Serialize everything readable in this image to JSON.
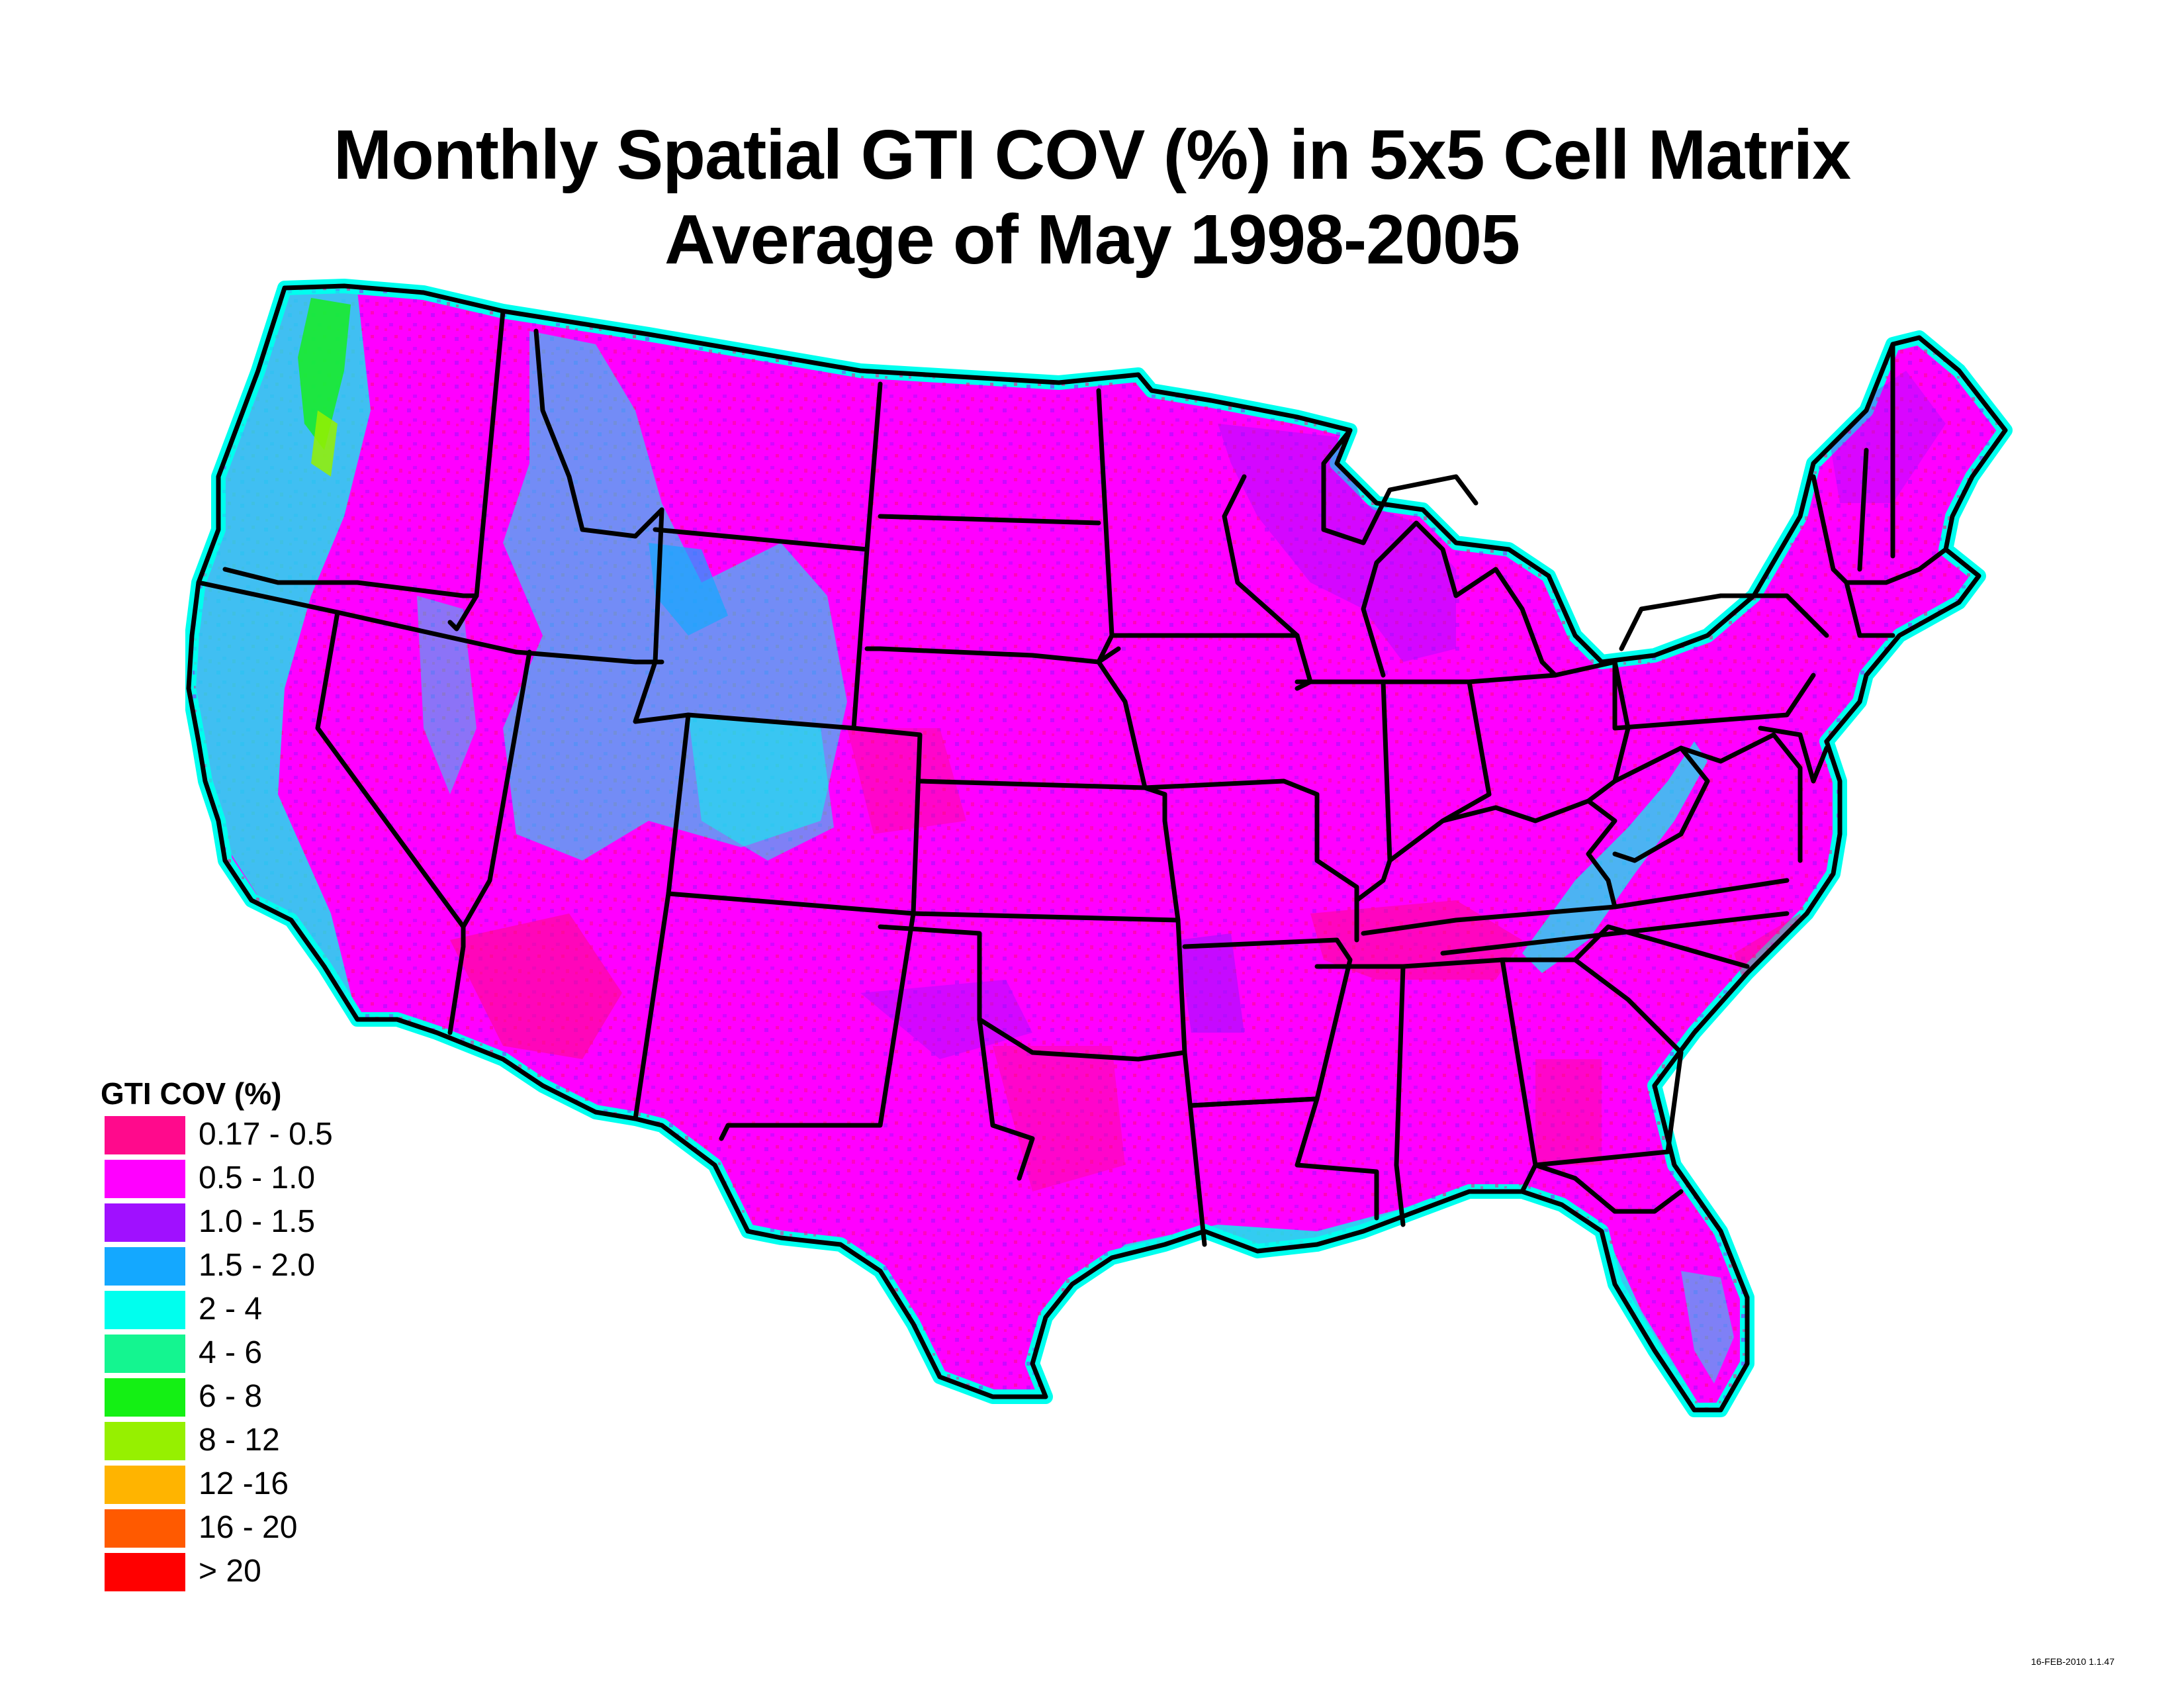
{
  "title": {
    "line1": "Monthly Spatial GTI COV (%) in 5x5 Cell Matrix",
    "line2": "Average of May 1998-2005"
  },
  "legend": {
    "title": "GTI COV (%)",
    "items": [
      {
        "label": "0.17 - 0.5",
        "color": "#ff0a8c"
      },
      {
        "label": "0.5 - 1.0",
        "color": "#ff00ff"
      },
      {
        "label": "1.0 - 1.5",
        "color": "#a010ff"
      },
      {
        "label": "1.5 - 2.0",
        "color": "#14a8ff"
      },
      {
        "label": "2 - 4",
        "color": "#00ffee"
      },
      {
        "label": "4 - 6",
        "color": "#14f590"
      },
      {
        "label": "6 - 8",
        "color": "#14f014"
      },
      {
        "label": "8 - 12",
        "color": "#96f000"
      },
      {
        "label": "12 -16",
        "color": "#ffb400"
      },
      {
        "label": "16 - 20",
        "color": "#ff5a00"
      },
      {
        "label": "> 20",
        "color": "#ff0000"
      }
    ]
  },
  "footer": {
    "stamp": "16-FEB-2010 1.1.47"
  }
}
